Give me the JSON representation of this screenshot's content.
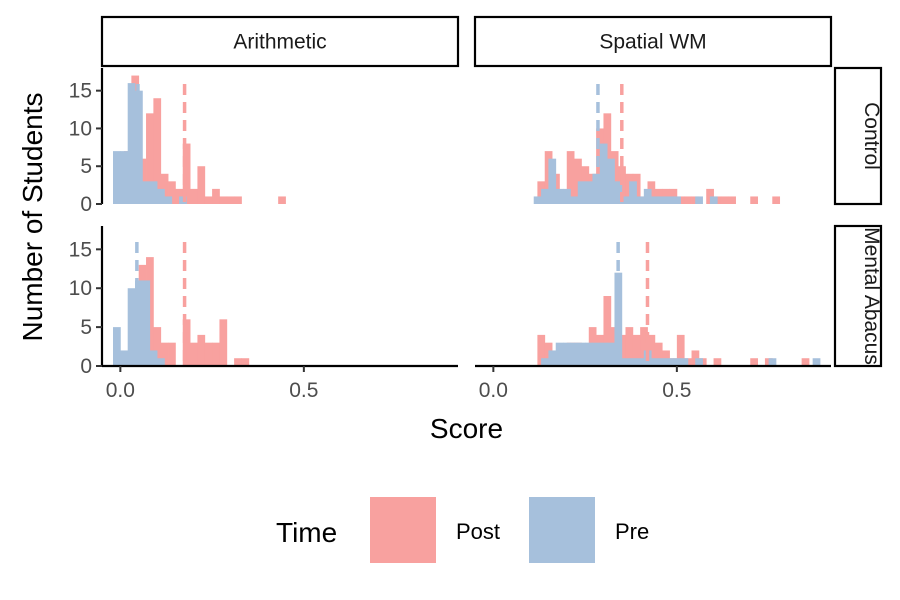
{
  "chart_data": {
    "type": "histogram",
    "xlabel": "Score",
    "ylabel": "Number of Students",
    "xlim": [
      -0.05,
      0.92
    ],
    "ylim": [
      0,
      18
    ],
    "x_ticks": [
      0.0,
      0.5
    ],
    "x_tick_labels": [
      "0.0",
      "0.5"
    ],
    "y_ticks": [
      0,
      5,
      10,
      15
    ],
    "y_tick_labels": [
      "0",
      "5",
      "10",
      "15"
    ],
    "grid": false,
    "legend": {
      "title": "Time",
      "position": "bottom",
      "entries": [
        {
          "name": "Post",
          "color": "#F8A19F"
        },
        {
          "name": "Pre",
          "color": "#A6C0DC"
        }
      ]
    },
    "columns": [
      "Arithmetic",
      "Spatial WM"
    ],
    "rows": [
      "Control",
      "Mental Abacus"
    ],
    "bin_width": 0.02,
    "panels": [
      {
        "row": "Control",
        "col": "Arithmetic",
        "mean_post": 0.175,
        "mean_pre": 0.048,
        "post": [
          [
            0.02,
            7
          ],
          [
            0.04,
            17
          ],
          [
            0.06,
            6
          ],
          [
            0.08,
            12
          ],
          [
            0.1,
            14
          ],
          [
            0.12,
            4
          ],
          [
            0.14,
            3
          ],
          [
            0.16,
            2
          ],
          [
            0.18,
            8
          ],
          [
            0.2,
            2
          ],
          [
            0.22,
            5
          ],
          [
            0.24,
            1
          ],
          [
            0.26,
            2
          ],
          [
            0.28,
            1
          ],
          [
            0.3,
            1
          ],
          [
            0.32,
            1
          ],
          [
            0.44,
            1
          ]
        ],
        "pre": [
          [
            -0.01,
            7
          ],
          [
            0.01,
            7
          ],
          [
            0.03,
            16
          ],
          [
            0.05,
            15
          ],
          [
            0.07,
            3
          ],
          [
            0.09,
            3
          ],
          [
            0.11,
            2
          ],
          [
            0.13,
            1
          ],
          [
            0.17,
            1
          ]
        ]
      },
      {
        "row": "Control",
        "col": "Spatial WM",
        "mean_post": 0.35,
        "mean_pre": 0.285,
        "post": [
          [
            0.13,
            3
          ],
          [
            0.15,
            7
          ],
          [
            0.17,
            4
          ],
          [
            0.19,
            1
          ],
          [
            0.21,
            7
          ],
          [
            0.23,
            6
          ],
          [
            0.25,
            5
          ],
          [
            0.27,
            4
          ],
          [
            0.29,
            10
          ],
          [
            0.31,
            12
          ],
          [
            0.33,
            7
          ],
          [
            0.35,
            5
          ],
          [
            0.37,
            4
          ],
          [
            0.39,
            4
          ],
          [
            0.41,
            1
          ],
          [
            0.43,
            3
          ],
          [
            0.45,
            2
          ],
          [
            0.47,
            2
          ],
          [
            0.49,
            2
          ],
          [
            0.51,
            1
          ],
          [
            0.53,
            1
          ],
          [
            0.55,
            1
          ],
          [
            0.59,
            2
          ],
          [
            0.61,
            1
          ],
          [
            0.63,
            1
          ],
          [
            0.65,
            1
          ],
          [
            0.71,
            1
          ],
          [
            0.77,
            1
          ]
        ],
        "pre": [
          [
            0.12,
            1
          ],
          [
            0.14,
            2
          ],
          [
            0.16,
            6
          ],
          [
            0.18,
            2
          ],
          [
            0.2,
            2
          ],
          [
            0.22,
            1
          ],
          [
            0.24,
            3
          ],
          [
            0.26,
            3
          ],
          [
            0.28,
            4
          ],
          [
            0.3,
            8
          ],
          [
            0.32,
            6
          ],
          [
            0.34,
            3
          ],
          [
            0.36,
            1
          ],
          [
            0.38,
            3
          ],
          [
            0.4,
            1
          ],
          [
            0.42,
            2
          ],
          [
            0.44,
            1
          ],
          [
            0.46,
            1
          ],
          [
            0.48,
            1
          ],
          [
            0.5,
            1
          ],
          [
            0.56,
            1
          ],
          [
            0.6,
            1
          ]
        ]
      },
      {
        "row": "Mental Abacus",
        "col": "Arithmetic",
        "mean_post": 0.175,
        "mean_pre": 0.045,
        "post": [
          [
            0.06,
            13
          ],
          [
            0.08,
            14
          ],
          [
            0.1,
            5
          ],
          [
            0.12,
            3
          ],
          [
            0.14,
            3
          ],
          [
            0.18,
            6
          ],
          [
            0.2,
            3
          ],
          [
            0.22,
            4
          ],
          [
            0.24,
            3
          ],
          [
            0.26,
            3
          ],
          [
            0.28,
            6
          ],
          [
            0.32,
            1
          ],
          [
            0.34,
            1
          ]
        ],
        "pre": [
          [
            -0.01,
            5
          ],
          [
            0.01,
            2
          ],
          [
            0.03,
            10
          ],
          [
            0.05,
            11
          ],
          [
            0.07,
            11
          ],
          [
            0.09,
            2
          ],
          [
            0.11,
            1
          ]
        ]
      },
      {
        "row": "Mental Abacus",
        "col": "Spatial WM",
        "mean_post": 0.42,
        "mean_pre": 0.34,
        "post": [
          [
            0.13,
            4
          ],
          [
            0.15,
            3
          ],
          [
            0.17,
            1
          ],
          [
            0.19,
            2
          ],
          [
            0.21,
            3
          ],
          [
            0.23,
            3
          ],
          [
            0.25,
            2
          ],
          [
            0.27,
            5
          ],
          [
            0.29,
            4
          ],
          [
            0.31,
            9
          ],
          [
            0.33,
            5
          ],
          [
            0.35,
            4
          ],
          [
            0.37,
            5
          ],
          [
            0.39,
            4
          ],
          [
            0.41,
            5
          ],
          [
            0.43,
            4
          ],
          [
            0.45,
            3
          ],
          [
            0.47,
            2
          ],
          [
            0.49,
            1
          ],
          [
            0.51,
            4
          ],
          [
            0.53,
            1
          ],
          [
            0.55,
            2
          ],
          [
            0.57,
            1
          ],
          [
            0.61,
            1
          ],
          [
            0.71,
            1
          ],
          [
            0.75,
            1
          ],
          [
            0.85,
            1
          ]
        ],
        "pre": [
          [
            0.14,
            1
          ],
          [
            0.16,
            2
          ],
          [
            0.18,
            3
          ],
          [
            0.2,
            3
          ],
          [
            0.22,
            3
          ],
          [
            0.24,
            3
          ],
          [
            0.26,
            3
          ],
          [
            0.28,
            3
          ],
          [
            0.3,
            3
          ],
          [
            0.32,
            3
          ],
          [
            0.34,
            12
          ],
          [
            0.36,
            1
          ],
          [
            0.38,
            1
          ],
          [
            0.4,
            1
          ],
          [
            0.42,
            2
          ],
          [
            0.44,
            1
          ],
          [
            0.46,
            1
          ],
          [
            0.48,
            1
          ],
          [
            0.5,
            1
          ],
          [
            0.52,
            1
          ],
          [
            0.56,
            1
          ],
          [
            0.76,
            1
          ],
          [
            0.88,
            1
          ]
        ]
      }
    ]
  }
}
